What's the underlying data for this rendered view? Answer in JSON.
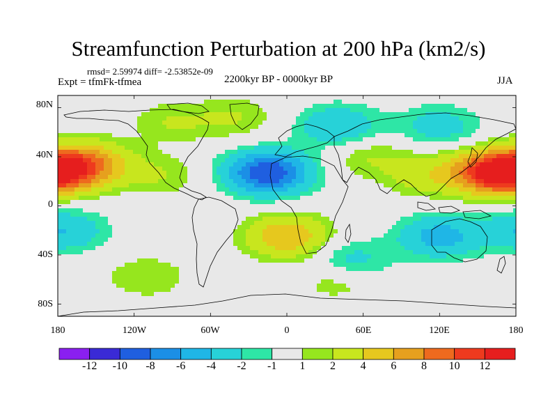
{
  "title": "Streamfunction Perturbation at 200 hPa (km2/s)",
  "stats": "rmsd= 2.59974 diff= -2.53852e-09",
  "experiment": "Expt = tfmFk-tfmea",
  "period": "2200kyr BP - 0000kyr BP",
  "season": "JJA",
  "lat_labels": [
    "80N",
    "40N",
    "0",
    "40S",
    "80S"
  ],
  "lon_labels": [
    "180",
    "120W",
    "60W",
    "0",
    "60E",
    "120E",
    "180"
  ],
  "colorbar": {
    "labels": [
      "-12",
      "-10",
      "-8",
      "-6",
      "-4",
      "-2",
      "-1",
      "1",
      "2",
      "4",
      "6",
      "8",
      "10",
      "12"
    ],
    "colors": [
      "#8a1ff0",
      "#3a2ad6",
      "#1f5fe0",
      "#1b8fe6",
      "#1fb6e6",
      "#27d2d8",
      "#2ee6a6",
      "#e8e8e8",
      "#96e61e",
      "#c8e61e",
      "#e6c81e",
      "#e6a01e",
      "#ee6a1e",
      "#ee3a1e",
      "#e61e1e"
    ]
  },
  "chart_data": {
    "type": "heatmap",
    "title": "Streamfunction Perturbation at 200 hPa (km2/s)",
    "units": "km2/s",
    "x_range": [
      -180,
      180
    ],
    "y_range": [
      -90,
      90
    ],
    "levels": [
      -12,
      -10,
      -8,
      -6,
      -4,
      -2,
      -1,
      1,
      2,
      4,
      6,
      8,
      10,
      12
    ],
    "features": [
      {
        "name": "north-pacific-high",
        "lon": -180,
        "lat": 28,
        "value": 9
      },
      {
        "name": "north-pacific-east-high",
        "lon": -155,
        "lat": 35,
        "value": 6
      },
      {
        "name": "central-america-high",
        "lon": -100,
        "lat": 25,
        "value": 2
      },
      {
        "name": "canada-band",
        "lon": -90,
        "lat": 68,
        "value": 2
      },
      {
        "name": "greenland-band",
        "lon": -40,
        "lat": 72,
        "value": 2
      },
      {
        "name": "north-atlantic-low",
        "lon": -15,
        "lat": 27,
        "value": -10
      },
      {
        "name": "europe-low",
        "lon": 40,
        "lat": 65,
        "value": -4
      },
      {
        "name": "central-asia-high",
        "lon": 65,
        "lat": 40,
        "value": 2
      },
      {
        "name": "siberia-low",
        "lon": 120,
        "lat": 65,
        "value": -3
      },
      {
        "name": "west-pacific-high",
        "lon": 160,
        "lat": 27,
        "value": 9
      },
      {
        "name": "southeast-asia-high",
        "lon": 110,
        "lat": 25,
        "value": 3
      },
      {
        "name": "south-atlantic-high",
        "lon": 0,
        "lat": -25,
        "value": 6
      },
      {
        "name": "south-indian-low",
        "lon": 50,
        "lat": -45,
        "value": -3
      },
      {
        "name": "australia-low",
        "lon": 120,
        "lat": -25,
        "value": -5
      },
      {
        "name": "south-pacific-low",
        "lon": -175,
        "lat": -20,
        "value": -4
      },
      {
        "name": "southern-ocean-band",
        "lon": -110,
        "lat": -58,
        "value": 2
      },
      {
        "name": "southern-ocean-band-east",
        "lon": 40,
        "lat": -60,
        "value": 2
      }
    ]
  }
}
